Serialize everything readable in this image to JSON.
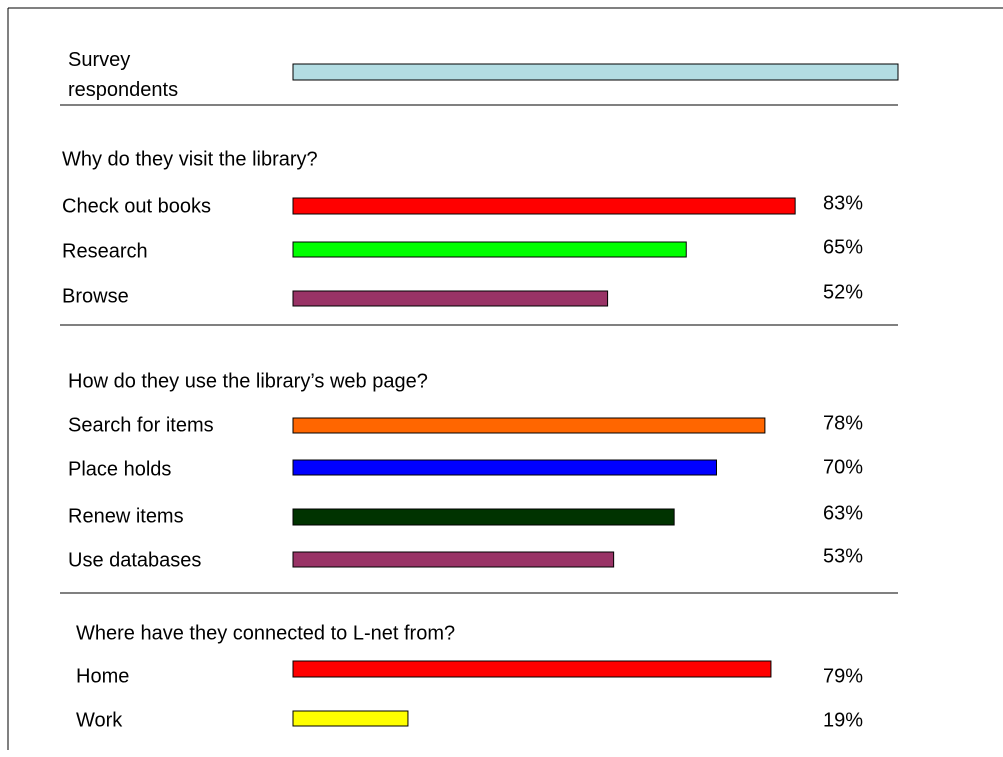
{
  "chart_data": [
    {
      "type": "bar",
      "categories": [
        "Survey respondents"
      ],
      "values": [
        100
      ],
      "colors": [
        "#b3dde3"
      ],
      "xlim": [
        0,
        100
      ]
    },
    {
      "type": "bar",
      "title": "Why do they visit the library?",
      "categories": [
        "Check out books",
        "Research",
        "Browse"
      ],
      "values": [
        83,
        65,
        52
      ],
      "value_labels": [
        "83%",
        "65%",
        "52%"
      ],
      "colors": [
        "#ff0000",
        "#00ff00",
        "#993366"
      ],
      "xlim": [
        0,
        100
      ]
    },
    {
      "type": "bar",
      "title": "How do they use the library’s web page?",
      "categories": [
        "Search for items",
        "Place holds",
        "Renew items",
        "Use databases"
      ],
      "values": [
        78,
        70,
        63,
        53
      ],
      "value_labels": [
        "78%",
        "70%",
        "63%",
        "53%"
      ],
      "colors": [
        "#ff6600",
        "#0000ff",
        "#003300",
        "#993366"
      ],
      "xlim": [
        0,
        100
      ]
    },
    {
      "type": "bar",
      "title": "Where have they connected to L-net from?",
      "categories": [
        "Home",
        "Work"
      ],
      "values": [
        79,
        19
      ],
      "value_labels": [
        "79%",
        "19%"
      ],
      "colors": [
        "#ff0000",
        "#ffff00"
      ],
      "xlim": [
        0,
        100
      ]
    }
  ]
}
